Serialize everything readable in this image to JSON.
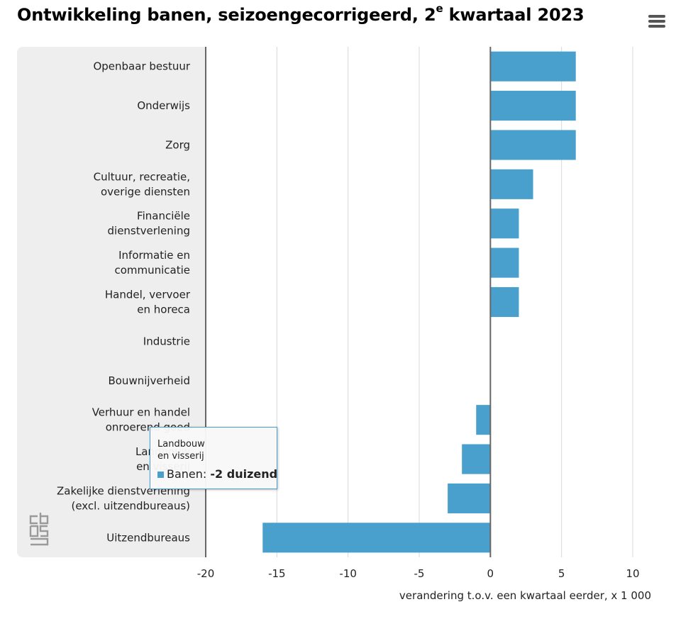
{
  "header": {
    "title_main": "Ontwikkeling banen, seizoengecorrigeerd, 2",
    "title_sup": "e",
    "title_end": " kwartaal 2023",
    "menu_icon": "hamburger-menu-icon"
  },
  "logo": {
    "icon": "cbs-logo-icon"
  },
  "colors": {
    "bar": "#4aa0cd",
    "panel": "#eeeeee",
    "grid": "#d8d8d8",
    "zero_line": "#666666"
  },
  "chart_data": {
    "type": "bar",
    "orientation": "horizontal",
    "categories": [
      [
        "Openbaar bestuur"
      ],
      [
        "Onderwijs"
      ],
      [
        "Zorg"
      ],
      [
        "Cultuur, recreatie,",
        "overige diensten"
      ],
      [
        "Financiële",
        "dienstverlening"
      ],
      [
        "Informatie en",
        "communicatie"
      ],
      [
        "Handel, vervoer",
        "en horeca"
      ],
      [
        "Industrie"
      ],
      [
        "Bouwnijverheid"
      ],
      [
        "Verhuur en handel",
        "onroerend goed"
      ],
      [
        "Landbouw",
        "en visserij"
      ],
      [
        "Zakelijke dienstverlening",
        "(excl. uitzendbureaus)"
      ],
      [
        "Uitzendbureaus"
      ]
    ],
    "series": [
      {
        "name": "Banen",
        "values": [
          6,
          6,
          6,
          3,
          2,
          2,
          2,
          0,
          0,
          -1,
          -2,
          -3,
          -16
        ]
      }
    ],
    "xlim": [
      -20,
      10
    ],
    "ticks": [
      -20,
      -15,
      -10,
      -5,
      0,
      5,
      10
    ],
    "xlabel": "verandering t.o.v. een kwartaal eerder, x 1 000",
    "grid": true
  },
  "tooltip": {
    "category_line1": "Landbouw",
    "category_line2": "en visserij",
    "series_label": "Banen:",
    "value_text": "-2 duizend"
  }
}
